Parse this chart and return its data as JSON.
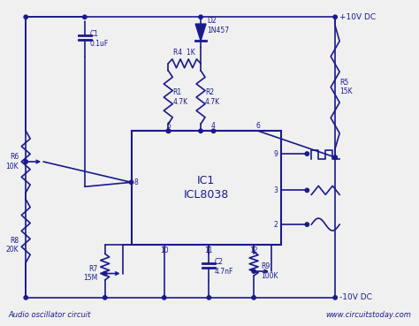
{
  "bg": "#f0f0f0",
  "lc": "#1a1a8c",
  "lw": 1.2,
  "ic_label1": "IC1",
  "ic_label2": "ICL8038",
  "sub_left": "Audio oscillator circuit",
  "sub_right": "www.circuitstoday.com",
  "pwr_pos": "+10V DC",
  "pwr_neg": "-10V DC",
  "labels": {
    "D2": "D2\n1N457",
    "R4": "R4  1K",
    "R1": "R1\n4.7K",
    "R2": "R2\n4.7K",
    "R5": "R5\n15K",
    "C1": "C1\n0.1uF",
    "R6": "R6\n10K",
    "R8": "R8\n20K",
    "R7": "R7\n15M",
    "C2": "C2\n4.7nF",
    "R9": "R9\n100K"
  }
}
